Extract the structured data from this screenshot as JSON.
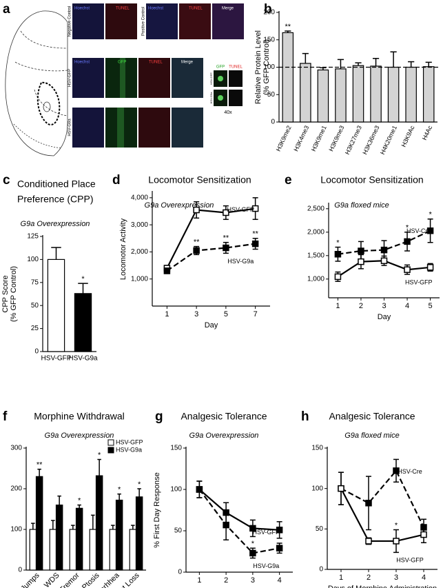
{
  "panel_a": {
    "label": "a",
    "columns_top": [
      "Hoechst",
      "TUNEL",
      "Hoechst",
      "TUNEL",
      "Merge"
    ],
    "columns_mid": [
      "Hoechst",
      "GFP",
      "TUNEL",
      "Merge"
    ],
    "rows": [
      "Negative Control",
      "Positive Control",
      "HSV-GFP",
      "HSV-G9a"
    ],
    "inset": {
      "columns": [
        "GFP",
        "TUNEL"
      ],
      "rows": [
        "HSV-GFP",
        "HSV-G9a"
      ],
      "magnification": "40x"
    }
  },
  "chart_data": [
    {
      "type": "bar",
      "label": "b",
      "ylabel": [
        "Relative Protein Level",
        "(% GFP Control)"
      ],
      "categories": [
        "H3K9me2",
        "H3K4me3",
        "H3K9me1",
        "H3K9me3",
        "H3K27me3",
        "H3K36me3",
        "H4K20me1",
        "H3K9Ac",
        "H4Ac"
      ],
      "values": [
        163,
        107,
        95,
        97,
        103,
        102,
        100,
        100,
        101
      ],
      "errors": [
        3,
        18,
        4,
        17,
        5,
        14,
        28,
        10,
        8
      ],
      "significance": [
        "**",
        null,
        null,
        null,
        null,
        null,
        null,
        null,
        null
      ],
      "color": "#d3d3d3",
      "reference_line": 100,
      "ylim": [
        0,
        200
      ],
      "yticks": [
        0,
        50,
        100,
        150,
        200
      ]
    },
    {
      "type": "bar",
      "label": "c",
      "title": [
        "Conditioned Place",
        "Preference (CPP)"
      ],
      "subtitle": "G9a Overexpression",
      "ylabel": [
        "CPP Score",
        "(% GFP Control)"
      ],
      "categories": [
        "HSV-GFP",
        "HSV-G9a"
      ],
      "values": [
        100,
        63
      ],
      "errors": [
        13,
        11
      ],
      "significance": [
        null,
        "*"
      ],
      "colors": [
        "#ffffff",
        "#000000"
      ],
      "ylim": [
        0,
        125
      ],
      "yticks": [
        0,
        25,
        50,
        75,
        100,
        125
      ]
    },
    {
      "type": "line",
      "label": "d",
      "title": "Locomotor Sensitization",
      "subtitle": "G9a Overexpression",
      "xlabel": "Day",
      "ylabel": "Locomotor Activity",
      "x": [
        1,
        3,
        5,
        7
      ],
      "xlim": [
        0,
        8
      ],
      "xticks": [
        1,
        3,
        5,
        7
      ],
      "ylim": [
        0,
        4200
      ],
      "yticks": [
        {
          "value": 1000,
          "label": "1,000"
        },
        {
          "value": 2000,
          "label": "2,000"
        },
        {
          "value": 3000,
          "label": "3,000"
        },
        {
          "value": 4000,
          "label": "4,000"
        }
      ],
      "series": [
        {
          "name": "HSV-GFP",
          "color": "#000000",
          "dash": false,
          "marker_fill": "#ffffff",
          "values": [
            1400,
            3550,
            3450,
            3600
          ],
          "errors": [
            100,
            300,
            250,
            400
          ],
          "significance": [
            null,
            null,
            null,
            null
          ]
        },
        {
          "name": "HSV-G9a",
          "color": "#000000",
          "dash": true,
          "marker_fill": "#000000",
          "values": [
            1300,
            2050,
            2150,
            2300
          ],
          "errors": [
            100,
            150,
            200,
            200
          ],
          "significance": [
            null,
            "**",
            "**",
            "**"
          ]
        }
      ]
    },
    {
      "type": "line",
      "label": "e",
      "title": "Locomotor Sensitization",
      "subtitle": "G9a floxed mice",
      "xlabel": "Day",
      "x": [
        1,
        2,
        3,
        4,
        5
      ],
      "xlim": [
        0.6,
        5.4
      ],
      "xticks": [
        1,
        2,
        3,
        4,
        5
      ],
      "ylim": [
        600,
        2600
      ],
      "yticks": [
        {
          "value": 1000,
          "label": "1,000"
        },
        {
          "value": 1500,
          "label": "1,500"
        },
        {
          "value": 2000,
          "label": "2,000"
        },
        {
          "value": 2500,
          "label": "2,500"
        }
      ],
      "series": [
        {
          "name": "HSV-Cre",
          "color": "#000000",
          "dash": true,
          "marker_fill": "#000000",
          "values": [
            1530,
            1600,
            1620,
            1800,
            2030
          ],
          "errors": [
            150,
            200,
            200,
            200,
            250
          ],
          "significance": [
            "*",
            null,
            null,
            "*",
            "*"
          ]
        },
        {
          "name": "HSV-GFP",
          "color": "#000000",
          "dash": false,
          "marker_fill": "#ffffff",
          "values": [
            1050,
            1370,
            1390,
            1200,
            1250
          ],
          "errors": [
            100,
            150,
            100,
            100,
            80
          ],
          "significance": [
            null,
            null,
            null,
            null,
            null
          ]
        }
      ]
    },
    {
      "type": "bar",
      "label": "f",
      "title": "Morphine Withdrawal",
      "subtitle": "G9a Overexpression",
      "ylabel": "% GFP Control",
      "categories": [
        "Jumps",
        "WDS",
        "Tremor",
        "Ptosis",
        "Diarhhea",
        "Weight Loss"
      ],
      "series": [
        {
          "name": "HSV-GFP",
          "color": "#ffffff",
          "values": [
            100,
            100,
            100,
            100,
            100,
            100
          ],
          "errors": [
            15,
            22,
            10,
            35,
            10,
            10
          ],
          "significance": [
            null,
            null,
            null,
            null,
            null,
            null
          ]
        },
        {
          "name": "HSV-G9a",
          "color": "#000000",
          "values": [
            230,
            160,
            152,
            232,
            172,
            180
          ],
          "errors": [
            18,
            22,
            8,
            40,
            15,
            20
          ],
          "significance": [
            "**",
            null,
            "*",
            "*",
            "*",
            "*"
          ]
        }
      ],
      "legend": "top-right",
      "ylim": [
        0,
        300
      ],
      "yticks": [
        0,
        100,
        200,
        300
      ]
    },
    {
      "type": "line",
      "label": "g",
      "title": "Analgesic Tolerance",
      "subtitle": "G9a Overexpression",
      "xlabel": "Days of Morphine Administration",
      "ylabel": "% First Day Response",
      "x": [
        1,
        2,
        3,
        4
      ],
      "xlim": [
        0.5,
        4.5
      ],
      "xticks": [
        1,
        2,
        3,
        4
      ],
      "ylim": [
        0,
        150
      ],
      "yticks": [
        0,
        50,
        100,
        150
      ],
      "series": [
        {
          "name": "HSV-GFP",
          "color": "#000000",
          "dash": false,
          "marker_fill": "#000000",
          "values": [
            100,
            72,
            53,
            51
          ],
          "errors": [
            10,
            12,
            10,
            10
          ],
          "significance": [
            null,
            null,
            null,
            null
          ]
        },
        {
          "name": "HSV-G9a",
          "color": "#000000",
          "dash": true,
          "marker_fill": "#000000",
          "values": [
            100,
            57,
            23,
            29
          ],
          "errors": [
            10,
            18,
            6,
            6
          ],
          "significance": [
            null,
            null,
            "*",
            null
          ]
        }
      ]
    },
    {
      "type": "line",
      "label": "h",
      "title": "Analgesic Tolerance",
      "subtitle": "G9a floxed mice",
      "xlabel": "Days of Morphine Administration",
      "x": [
        1,
        2,
        3,
        4
      ],
      "xlim": [
        0.5,
        4.5
      ],
      "xticks": [
        1,
        2,
        3,
        4
      ],
      "ylim": [
        0,
        150
      ],
      "yticks": [
        0,
        50,
        100,
        150
      ],
      "series": [
        {
          "name": "HSV-Cre",
          "color": "#000000",
          "dash": true,
          "marker_fill": "#000000",
          "values": [
            100,
            82,
            122,
            52
          ],
          "errors": [
            20,
            33,
            14,
            10
          ],
          "significance": [
            null,
            null,
            null,
            null
          ]
        },
        {
          "name": "HSV-GFP",
          "color": "#000000",
          "dash": false,
          "marker_fill": "#ffffff",
          "values": [
            100,
            35,
            35,
            43
          ],
          "errors": [
            20,
            4,
            14,
            10
          ],
          "significance": [
            null,
            null,
            "*",
            null
          ]
        }
      ]
    }
  ]
}
